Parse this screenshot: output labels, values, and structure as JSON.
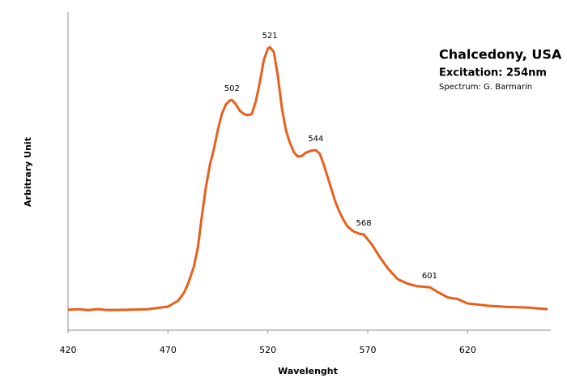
{
  "chart_data": {
    "type": "line",
    "title": "Chalcedony, USA",
    "subtitle": [
      "Excitation: 254nm",
      "Spectrum: G. Barmarin"
    ],
    "x_label": "Wavelenght",
    "y_label": "Arbitrary Unit",
    "xlim": [
      420,
      660
    ],
    "xticks": [
      420,
      470,
      520,
      570,
      620
    ],
    "ylim": [
      0,
      100
    ],
    "grid": false,
    "x": [
      420,
      425,
      430,
      435,
      440,
      450,
      460,
      465,
      470,
      475,
      478,
      480,
      483,
      485,
      487,
      489,
      491,
      493,
      495,
      497,
      499,
      501,
      502,
      504,
      506,
      508,
      510,
      512,
      514,
      516,
      518,
      520,
      521,
      523,
      525,
      527,
      529,
      531,
      533,
      535,
      537,
      539,
      542,
      544,
      546,
      548,
      550,
      552,
      554,
      556,
      558,
      560,
      563,
      566,
      568,
      572,
      576,
      580,
      585,
      590,
      595,
      601,
      605,
      610,
      615,
      620,
      630,
      640,
      650,
      660
    ],
    "series": [
      {
        "name": "Chalcedony, USA",
        "color": "#e8601c",
        "values": [
          6.4,
          6.6,
          6.3,
          6.6,
          6.3,
          6.4,
          6.6,
          7.0,
          7.4,
          9.2,
          11.7,
          14.5,
          20,
          26,
          36,
          45,
          52,
          57,
          63,
          68,
          71,
          72.2,
          72.4,
          71,
          69,
          68,
          67.6,
          68,
          72,
          78,
          85,
          88.5,
          89,
          87.5,
          80,
          70,
          63,
          59,
          56,
          54.6,
          54.8,
          55.8,
          56.5,
          56.6,
          55.5,
          52,
          48,
          44,
          40,
          37,
          34.5,
          32.5,
          31,
          30.3,
          30.1,
          27,
          23,
          19.5,
          16,
          14.6,
          13.8,
          13.5,
          12,
          10.3,
          9.8,
          8.4,
          7.7,
          7.3,
          7.1,
          6.6
        ]
      }
    ],
    "annotations": [
      {
        "text": "502",
        "x": 502,
        "y": 72.4
      },
      {
        "text": "521",
        "x": 521,
        "y": 89
      },
      {
        "text": "544",
        "x": 544,
        "y": 56.6
      },
      {
        "text": "568",
        "x": 568,
        "y": 30.1
      },
      {
        "text": "601",
        "x": 601,
        "y": 13.5
      }
    ]
  }
}
